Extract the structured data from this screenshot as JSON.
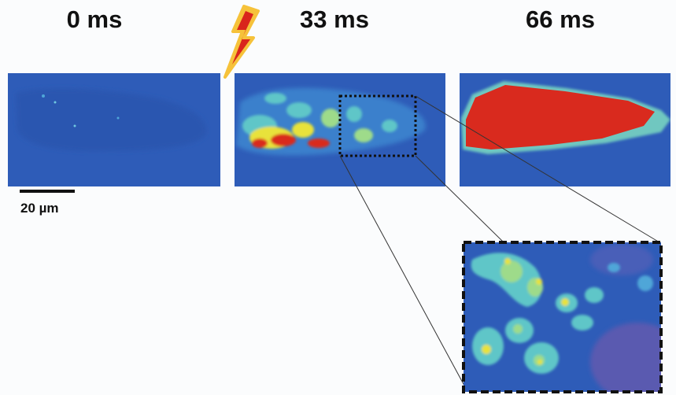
{
  "panels": [
    {
      "label": "0 ms"
    },
    {
      "label": "33 ms"
    },
    {
      "label": "66 ms"
    }
  ],
  "scale_bar": {
    "label": "20 µm"
  }
}
